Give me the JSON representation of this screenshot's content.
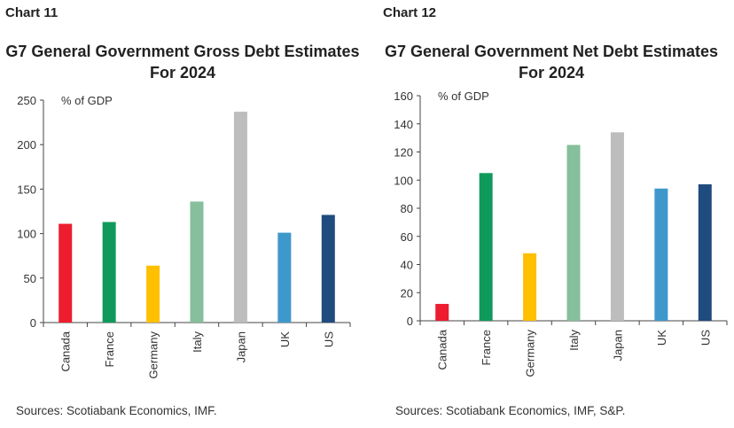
{
  "chart_data": [
    {
      "type": "bar",
      "label": "Chart 11",
      "title": "G7 General Government Gross Debt Estimates For 2024",
      "ylabel": "% of GDP",
      "categories": [
        "Canada",
        "France",
        "Germany",
        "Italy",
        "Japan",
        "UK",
        "US"
      ],
      "values": [
        111,
        113,
        64,
        136,
        237,
        101,
        121
      ],
      "colors": [
        "#ed1c2e",
        "#0f9a5c",
        "#ffc000",
        "#86bf9b",
        "#bdbdbd",
        "#3f98cc",
        "#1f4b7e"
      ],
      "ylim": [
        0,
        250
      ],
      "yticks": [
        0,
        50,
        100,
        150,
        200,
        250
      ],
      "grid": false,
      "source": "Sources: Scotiabank Economics, IMF."
    },
    {
      "type": "bar",
      "label": "Chart 12",
      "title": "G7 General Government Net Debt Estimates For 2024",
      "ylabel": "% of GDP",
      "categories": [
        "Canada",
        "France",
        "Germany",
        "Italy",
        "Japan",
        "UK",
        "US"
      ],
      "values": [
        12,
        105,
        48,
        125,
        134,
        94,
        97
      ],
      "colors": [
        "#ed1c2e",
        "#0f9a5c",
        "#ffc000",
        "#86bf9b",
        "#bdbdbd",
        "#3f98cc",
        "#1f4b7e"
      ],
      "ylim": [
        0,
        160
      ],
      "yticks": [
        0,
        20,
        40,
        60,
        80,
        100,
        120,
        140,
        160
      ],
      "grid": false,
      "source": "Sources: Scotiabank Economics, IMF, S&P."
    }
  ]
}
